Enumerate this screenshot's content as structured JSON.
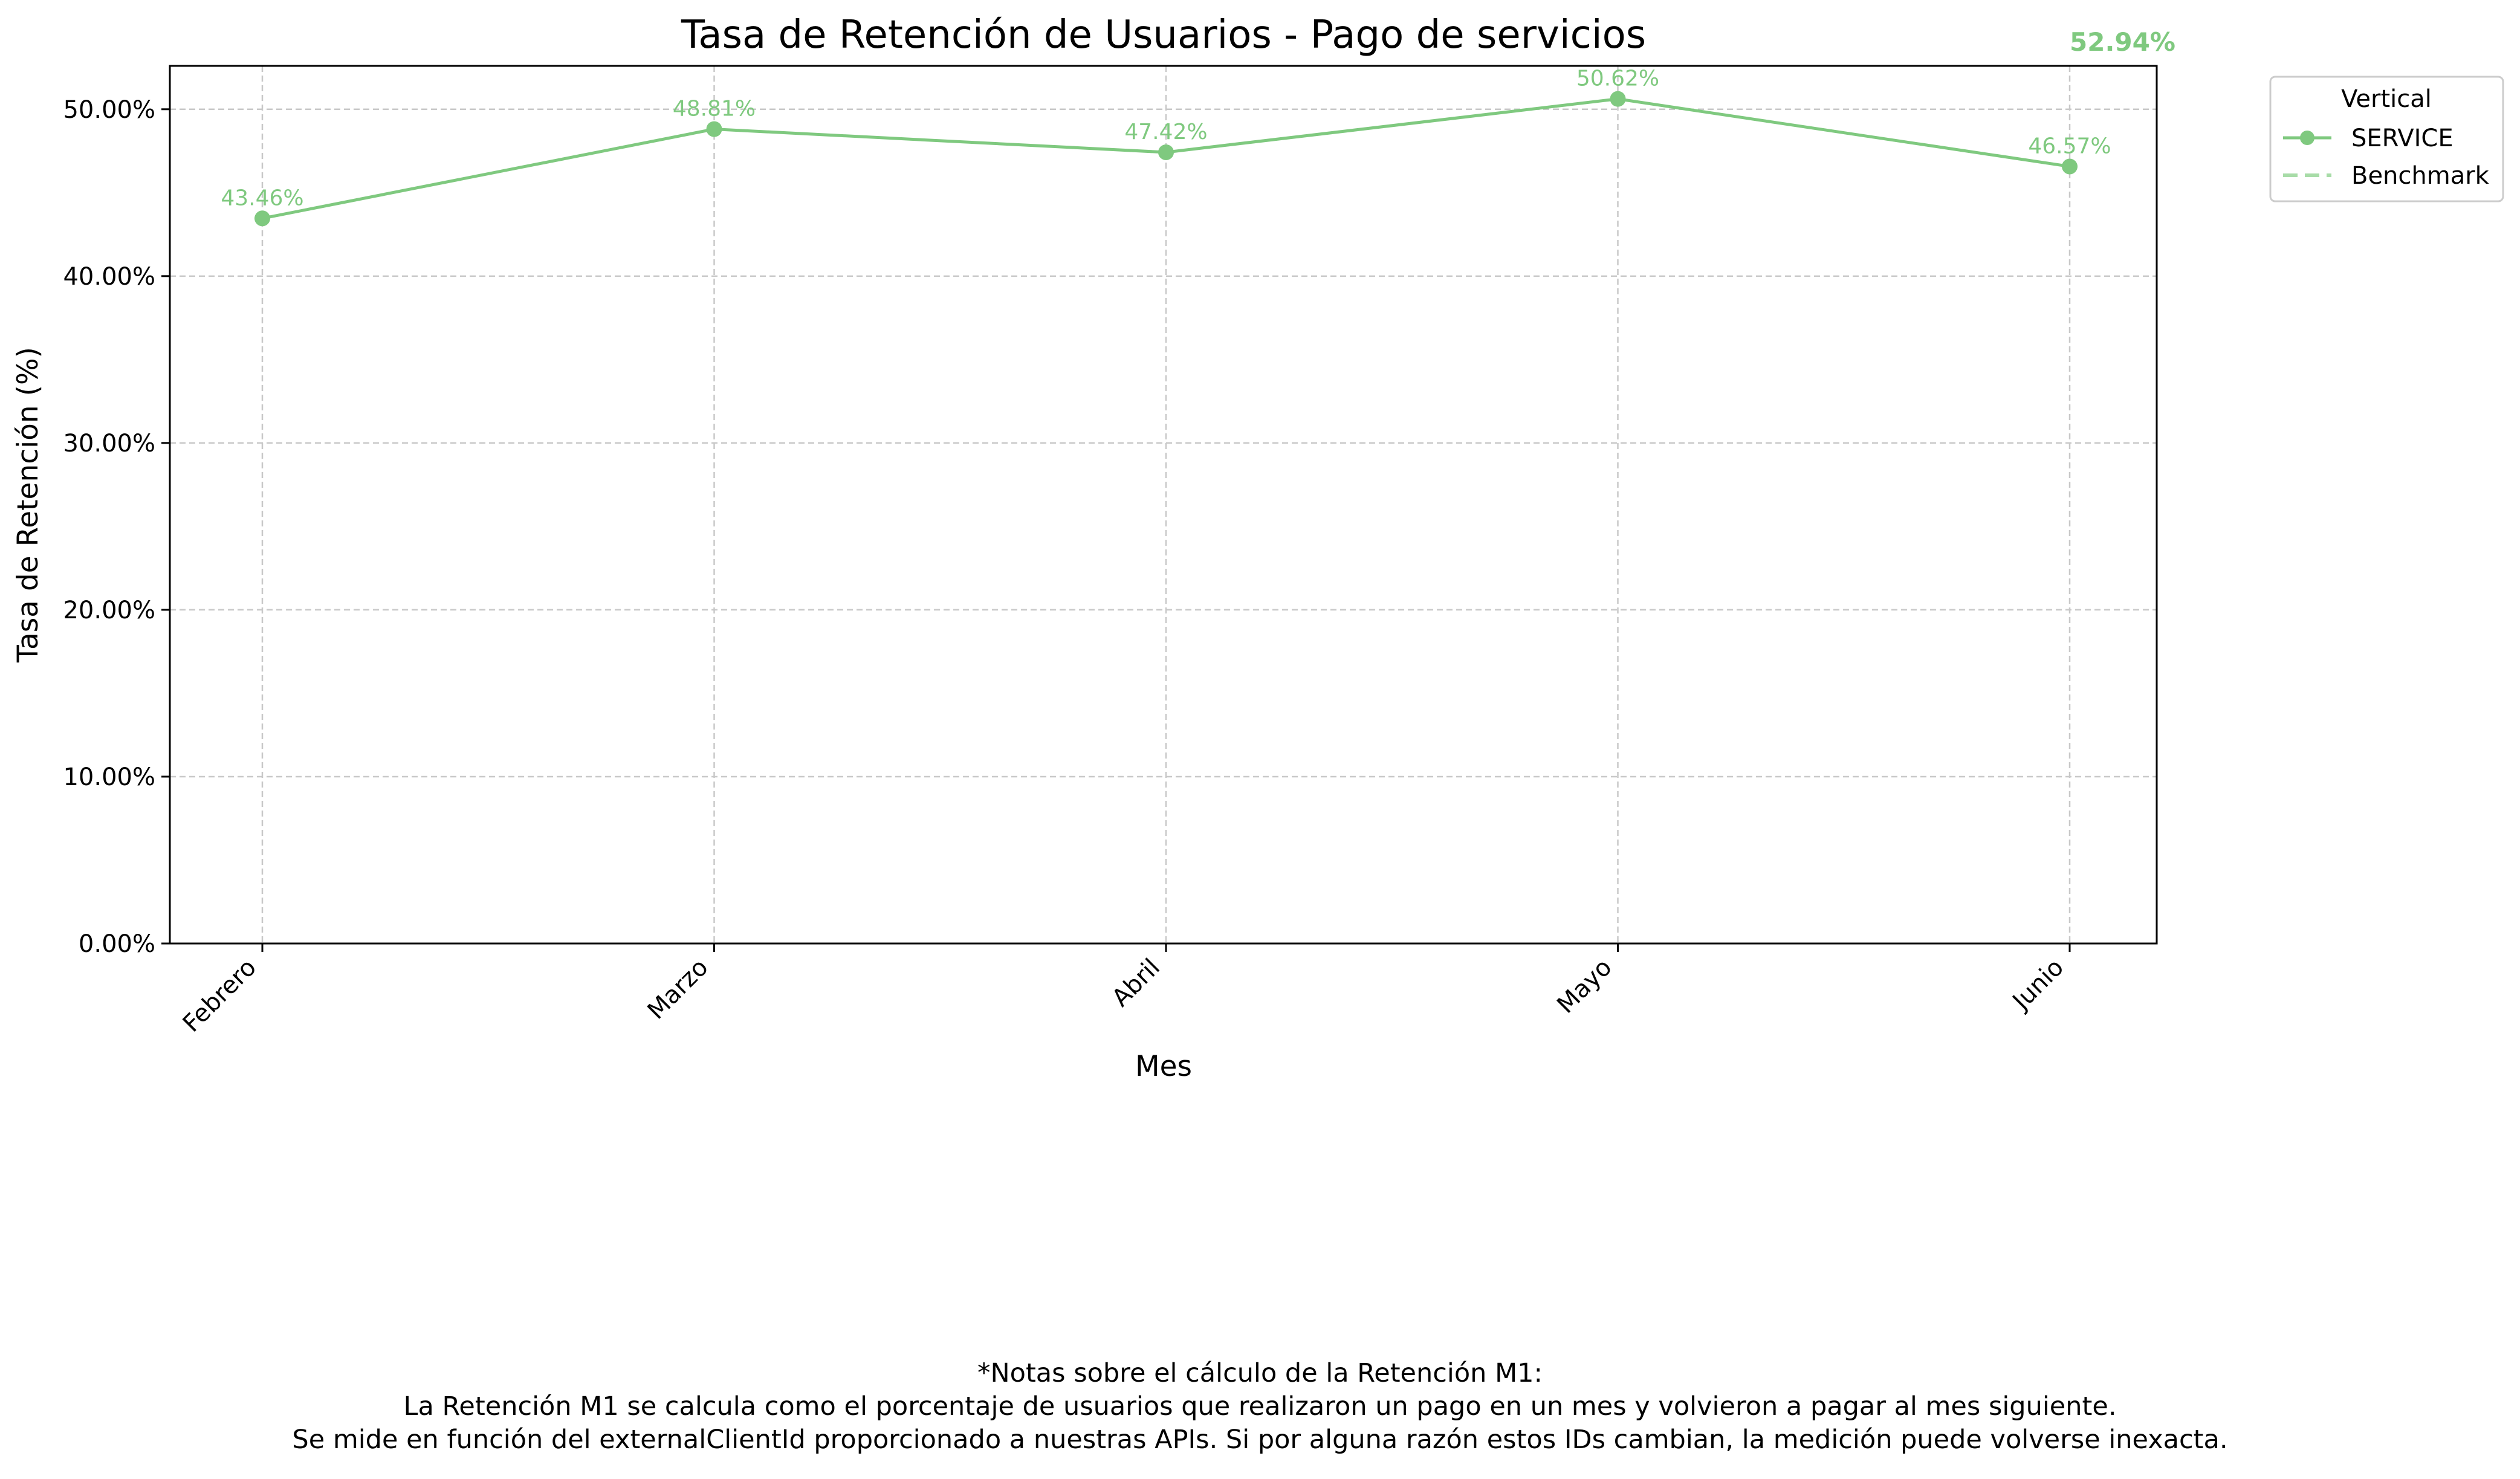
{
  "chart_data": {
    "type": "line",
    "title": "Tasa de Retención de Usuarios - Pago de servicios",
    "xlabel": "Mes",
    "ylabel": "Tasa de Retención (%)",
    "categories": [
      "Febrero",
      "Marzo",
      "Abril",
      "Mayo",
      "Junio"
    ],
    "series": [
      {
        "name": "SERVICE",
        "values": [
          43.46,
          48.81,
          47.42,
          50.62,
          46.57
        ],
        "labels": [
          "43.46%",
          "48.81%",
          "47.42%",
          "50.62%",
          "46.57%"
        ]
      }
    ],
    "benchmark": {
      "name": "Benchmark",
      "value": 52.94,
      "label": "52.94%"
    },
    "ylim": [
      0,
      52.6
    ],
    "yticks": [
      0,
      10,
      20,
      30,
      40,
      50
    ],
    "ytick_labels": [
      "0.00%",
      "10.00%",
      "20.00%",
      "30.00%",
      "40.00%",
      "50.00%"
    ],
    "grid": true,
    "legend": {
      "title": "Vertical",
      "entries": [
        "SERVICE",
        "Benchmark"
      ],
      "placement": "outside-right-top"
    },
    "colors": {
      "service": "#7fc97f",
      "benchmark": "#a8dca8",
      "grid": "#c8c8c8",
      "axis": "#000000"
    }
  },
  "notes": {
    "heading": "*Notas sobre el cálculo de la Retención M1:",
    "line1": "La Retención M1 se calcula como el porcentaje de usuarios que realizaron un pago en un mes y volvieron a pagar al mes siguiente.",
    "line2": "Se mide en función del externalClientId proporcionado a nuestras APIs. Si por alguna razón estos IDs cambian, la medición puede volverse inexacta."
  }
}
